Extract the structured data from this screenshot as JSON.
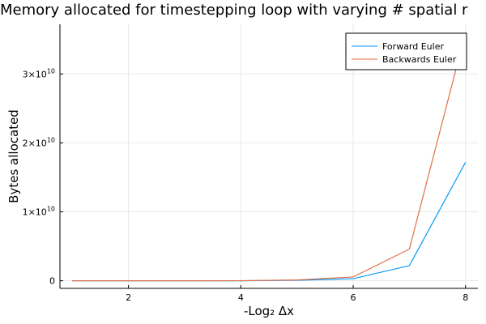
{
  "chart_data": {
    "type": "line",
    "title": "Memory allocated for timestepping loop with varying # spatial r",
    "xlabel": "-Log₂ Δx",
    "ylabel": "Bytes allocated",
    "xlim": [
      0.78,
      8.22
    ],
    "ylim": [
      -1100000000.0,
      37200000000.0
    ],
    "xticks": [
      {
        "value": 2,
        "label": "2"
      },
      {
        "value": 4,
        "label": "4"
      },
      {
        "value": 6,
        "label": "6"
      },
      {
        "value": 8,
        "label": "8"
      }
    ],
    "yticks": [
      {
        "value": 0,
        "base": "0",
        "exp": ""
      },
      {
        "value": 10000000000.0,
        "base": "1×10",
        "exp": "10"
      },
      {
        "value": 20000000000.0,
        "base": "2×10",
        "exp": "10"
      },
      {
        "value": 30000000000.0,
        "base": "3×10",
        "exp": "10"
      }
    ],
    "grid": true,
    "legend_position": "top-right",
    "x": [
      1,
      2,
      3,
      4,
      5,
      6,
      7,
      8
    ],
    "series": [
      {
        "name": "Forward Euler",
        "color": "#009af9",
        "values": [
          0,
          0,
          0,
          0,
          70000000.0,
          300000000.0,
          2200000000.0,
          17200000000.0
        ]
      },
      {
        "name": "Backwards Euler",
        "color": "#e26f46",
        "values": [
          0,
          0,
          0,
          10000000.0,
          120000000.0,
          550000000.0,
          4600000000.0,
          36000000000.0
        ]
      }
    ]
  }
}
